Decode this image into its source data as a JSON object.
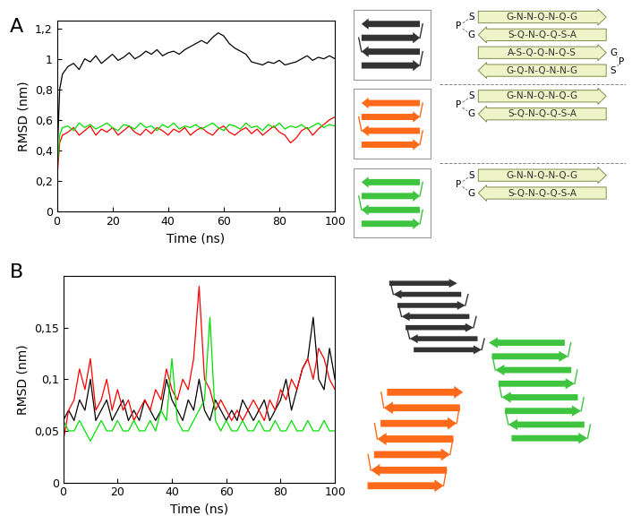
{
  "chart_data": [
    {
      "type": "line",
      "title": "A",
      "x_label": "Time (ns)",
      "y_label": "RMSD (nm)",
      "xlim": [
        0,
        100
      ],
      "ylim": [
        0,
        1.25
      ],
      "xticks": [
        0,
        20,
        40,
        60,
        80,
        100
      ],
      "yticks": [
        0,
        {
          "value": 0.2,
          "label": "0,2"
        },
        {
          "value": 0.4,
          "label": "0,4"
        },
        {
          "value": 0.6,
          "label": "0,6"
        },
        {
          "value": 0.8,
          "label": "0,8"
        },
        {
          "value": 1,
          "label": "1"
        },
        {
          "value": 1.2,
          "label": "1,2"
        }
      ],
      "grid": false,
      "x": [
        0,
        1,
        2,
        4,
        6,
        8,
        10,
        12,
        14,
        16,
        18,
        20,
        22,
        24,
        26,
        28,
        30,
        32,
        34,
        36,
        38,
        40,
        42,
        44,
        46,
        48,
        50,
        52,
        54,
        56,
        58,
        60,
        62,
        64,
        66,
        68,
        70,
        72,
        74,
        76,
        78,
        80,
        82,
        84,
        86,
        88,
        90,
        92,
        94,
        96,
        98,
        100
      ],
      "series": [
        {
          "color": "#000000",
          "values": [
            0.3,
            0.8,
            0.9,
            0.95,
            0.97,
            0.93,
            1.0,
            0.98,
            1.02,
            0.97,
            1.0,
            1.03,
            0.99,
            1.01,
            1.04,
            1.0,
            1.02,
            1.05,
            1.03,
            1.06,
            1.02,
            1.04,
            1.05,
            1.03,
            1.06,
            1.08,
            1.1,
            1.12,
            1.1,
            1.14,
            1.17,
            1.15,
            1.1,
            1.07,
            1.05,
            1.03,
            0.98,
            0.97,
            0.96,
            0.98,
            0.97,
            0.99,
            0.96,
            0.97,
            0.98,
            1.0,
            1.02,
            0.99,
            1.01,
            1.0,
            1.02,
            1.0
          ]
        },
        {
          "color": "#ff0000",
          "values": [
            0.2,
            0.45,
            0.5,
            0.52,
            0.55,
            0.5,
            0.53,
            0.56,
            0.5,
            0.54,
            0.52,
            0.55,
            0.5,
            0.53,
            0.56,
            0.52,
            0.5,
            0.54,
            0.51,
            0.55,
            0.53,
            0.5,
            0.54,
            0.52,
            0.55,
            0.5,
            0.53,
            0.55,
            0.52,
            0.5,
            0.54,
            0.56,
            0.52,
            0.5,
            0.53,
            0.55,
            0.51,
            0.54,
            0.5,
            0.53,
            0.56,
            0.52,
            0.5,
            0.45,
            0.48,
            0.53,
            0.55,
            0.5,
            0.54,
            0.57,
            0.6,
            0.62
          ]
        },
        {
          "color": "#00e000",
          "values": [
            0.25,
            0.5,
            0.55,
            0.56,
            0.53,
            0.58,
            0.55,
            0.57,
            0.54,
            0.56,
            0.58,
            0.55,
            0.53,
            0.57,
            0.56,
            0.54,
            0.58,
            0.55,
            0.56,
            0.53,
            0.57,
            0.55,
            0.58,
            0.54,
            0.56,
            0.55,
            0.57,
            0.54,
            0.56,
            0.58,
            0.55,
            0.53,
            0.57,
            0.56,
            0.54,
            0.58,
            0.55,
            0.56,
            0.53,
            0.57,
            0.55,
            0.58,
            0.54,
            0.56,
            0.55,
            0.57,
            0.54,
            0.56,
            0.58,
            0.55,
            0.57,
            0.56
          ]
        }
      ]
    },
    {
      "type": "line",
      "title": "B",
      "x_label": "Time (ns)",
      "y_label": "RMSD (nm)",
      "xlim": [
        0,
        100
      ],
      "ylim": [
        0,
        0.2
      ],
      "xticks": [
        0,
        20,
        40,
        60,
        80,
        100
      ],
      "yticks": [
        0,
        {
          "value": 0.05,
          "label": "0,05"
        },
        {
          "value": 0.1,
          "label": "0,1"
        },
        {
          "value": 0.15,
          "label": "0,15"
        }
      ],
      "grid": false,
      "x": [
        0,
        2,
        4,
        6,
        8,
        10,
        12,
        14,
        16,
        18,
        20,
        22,
        24,
        26,
        28,
        30,
        32,
        34,
        36,
        38,
        40,
        42,
        44,
        46,
        48,
        50,
        52,
        54,
        56,
        58,
        60,
        62,
        64,
        66,
        68,
        70,
        72,
        74,
        76,
        78,
        80,
        82,
        84,
        86,
        88,
        90,
        92,
        94,
        96,
        98,
        100
      ],
      "series": [
        {
          "color": "#000000",
          "values": [
            0.06,
            0.07,
            0.06,
            0.08,
            0.07,
            0.1,
            0.06,
            0.07,
            0.08,
            0.06,
            0.07,
            0.08,
            0.06,
            0.07,
            0.06,
            0.08,
            0.07,
            0.06,
            0.07,
            0.1,
            0.08,
            0.07,
            0.06,
            0.08,
            0.07,
            0.1,
            0.07,
            0.06,
            0.08,
            0.07,
            0.06,
            0.07,
            0.06,
            0.08,
            0.07,
            0.06,
            0.07,
            0.08,
            0.06,
            0.07,
            0.08,
            0.1,
            0.07,
            0.09,
            0.11,
            0.12,
            0.16,
            0.1,
            0.09,
            0.13,
            0.1
          ]
        },
        {
          "color": "#ff0000",
          "values": [
            0.04,
            0.07,
            0.08,
            0.11,
            0.09,
            0.12,
            0.07,
            0.08,
            0.1,
            0.07,
            0.09,
            0.07,
            0.08,
            0.06,
            0.07,
            0.08,
            0.07,
            0.09,
            0.08,
            0.11,
            0.09,
            0.08,
            0.1,
            0.09,
            0.12,
            0.19,
            0.1,
            0.09,
            0.07,
            0.08,
            0.07,
            0.06,
            0.07,
            0.06,
            0.07,
            0.08,
            0.07,
            0.06,
            0.08,
            0.07,
            0.09,
            0.08,
            0.1,
            0.09,
            0.11,
            0.12,
            0.1,
            0.13,
            0.12,
            0.1,
            0.09
          ]
        },
        {
          "color": "#00e000",
          "values": [
            0.06,
            0.05,
            0.05,
            0.06,
            0.05,
            0.04,
            0.05,
            0.06,
            0.05,
            0.05,
            0.06,
            0.05,
            0.05,
            0.06,
            0.05,
            0.05,
            0.06,
            0.05,
            0.07,
            0.06,
            0.12,
            0.06,
            0.05,
            0.05,
            0.06,
            0.07,
            0.08,
            0.16,
            0.06,
            0.05,
            0.06,
            0.05,
            0.05,
            0.06,
            0.05,
            0.05,
            0.06,
            0.05,
            0.05,
            0.06,
            0.05,
            0.05,
            0.06,
            0.05,
            0.05,
            0.06,
            0.05,
            0.05,
            0.06,
            0.05,
            0.05
          ]
        }
      ]
    }
  ],
  "diagram": {
    "models": [
      {
        "strands": [
          {
            "text": "G-N-N-Q-N-Q-G",
            "direction": "right"
          },
          {
            "text": "S-Q-N-Q-Q-S-A",
            "direction": "left"
          },
          {
            "text": "A-S-Q-Q-N-Q-S",
            "direction": "right"
          },
          {
            "text": "G-Q-N-Q-N-N-G",
            "direction": "left"
          }
        ],
        "turns": [
          {
            "side": "left",
            "letters": [
              "S",
              "P",
              "G"
            ]
          },
          {
            "side": "right",
            "letters": [
              "G",
              "P",
              "S"
            ]
          }
        ]
      },
      {
        "strands": [
          {
            "text": "G-N-N-Q-N-Q-G",
            "direction": "right"
          },
          {
            "text": "S-Q-N-Q-Q-S-A",
            "direction": "left"
          }
        ],
        "turns": [
          {
            "side": "left",
            "letters": [
              "S",
              "P",
              "G"
            ]
          }
        ]
      },
      {
        "strands": [
          {
            "text": "G-N-N-Q-N-Q-G",
            "direction": "right"
          },
          {
            "text": "S-Q-N-Q-Q-S-A",
            "direction": "left"
          }
        ],
        "turns": [
          {
            "side": "left",
            "letters": [
              "S",
              "P",
              "G"
            ]
          }
        ]
      }
    ]
  }
}
